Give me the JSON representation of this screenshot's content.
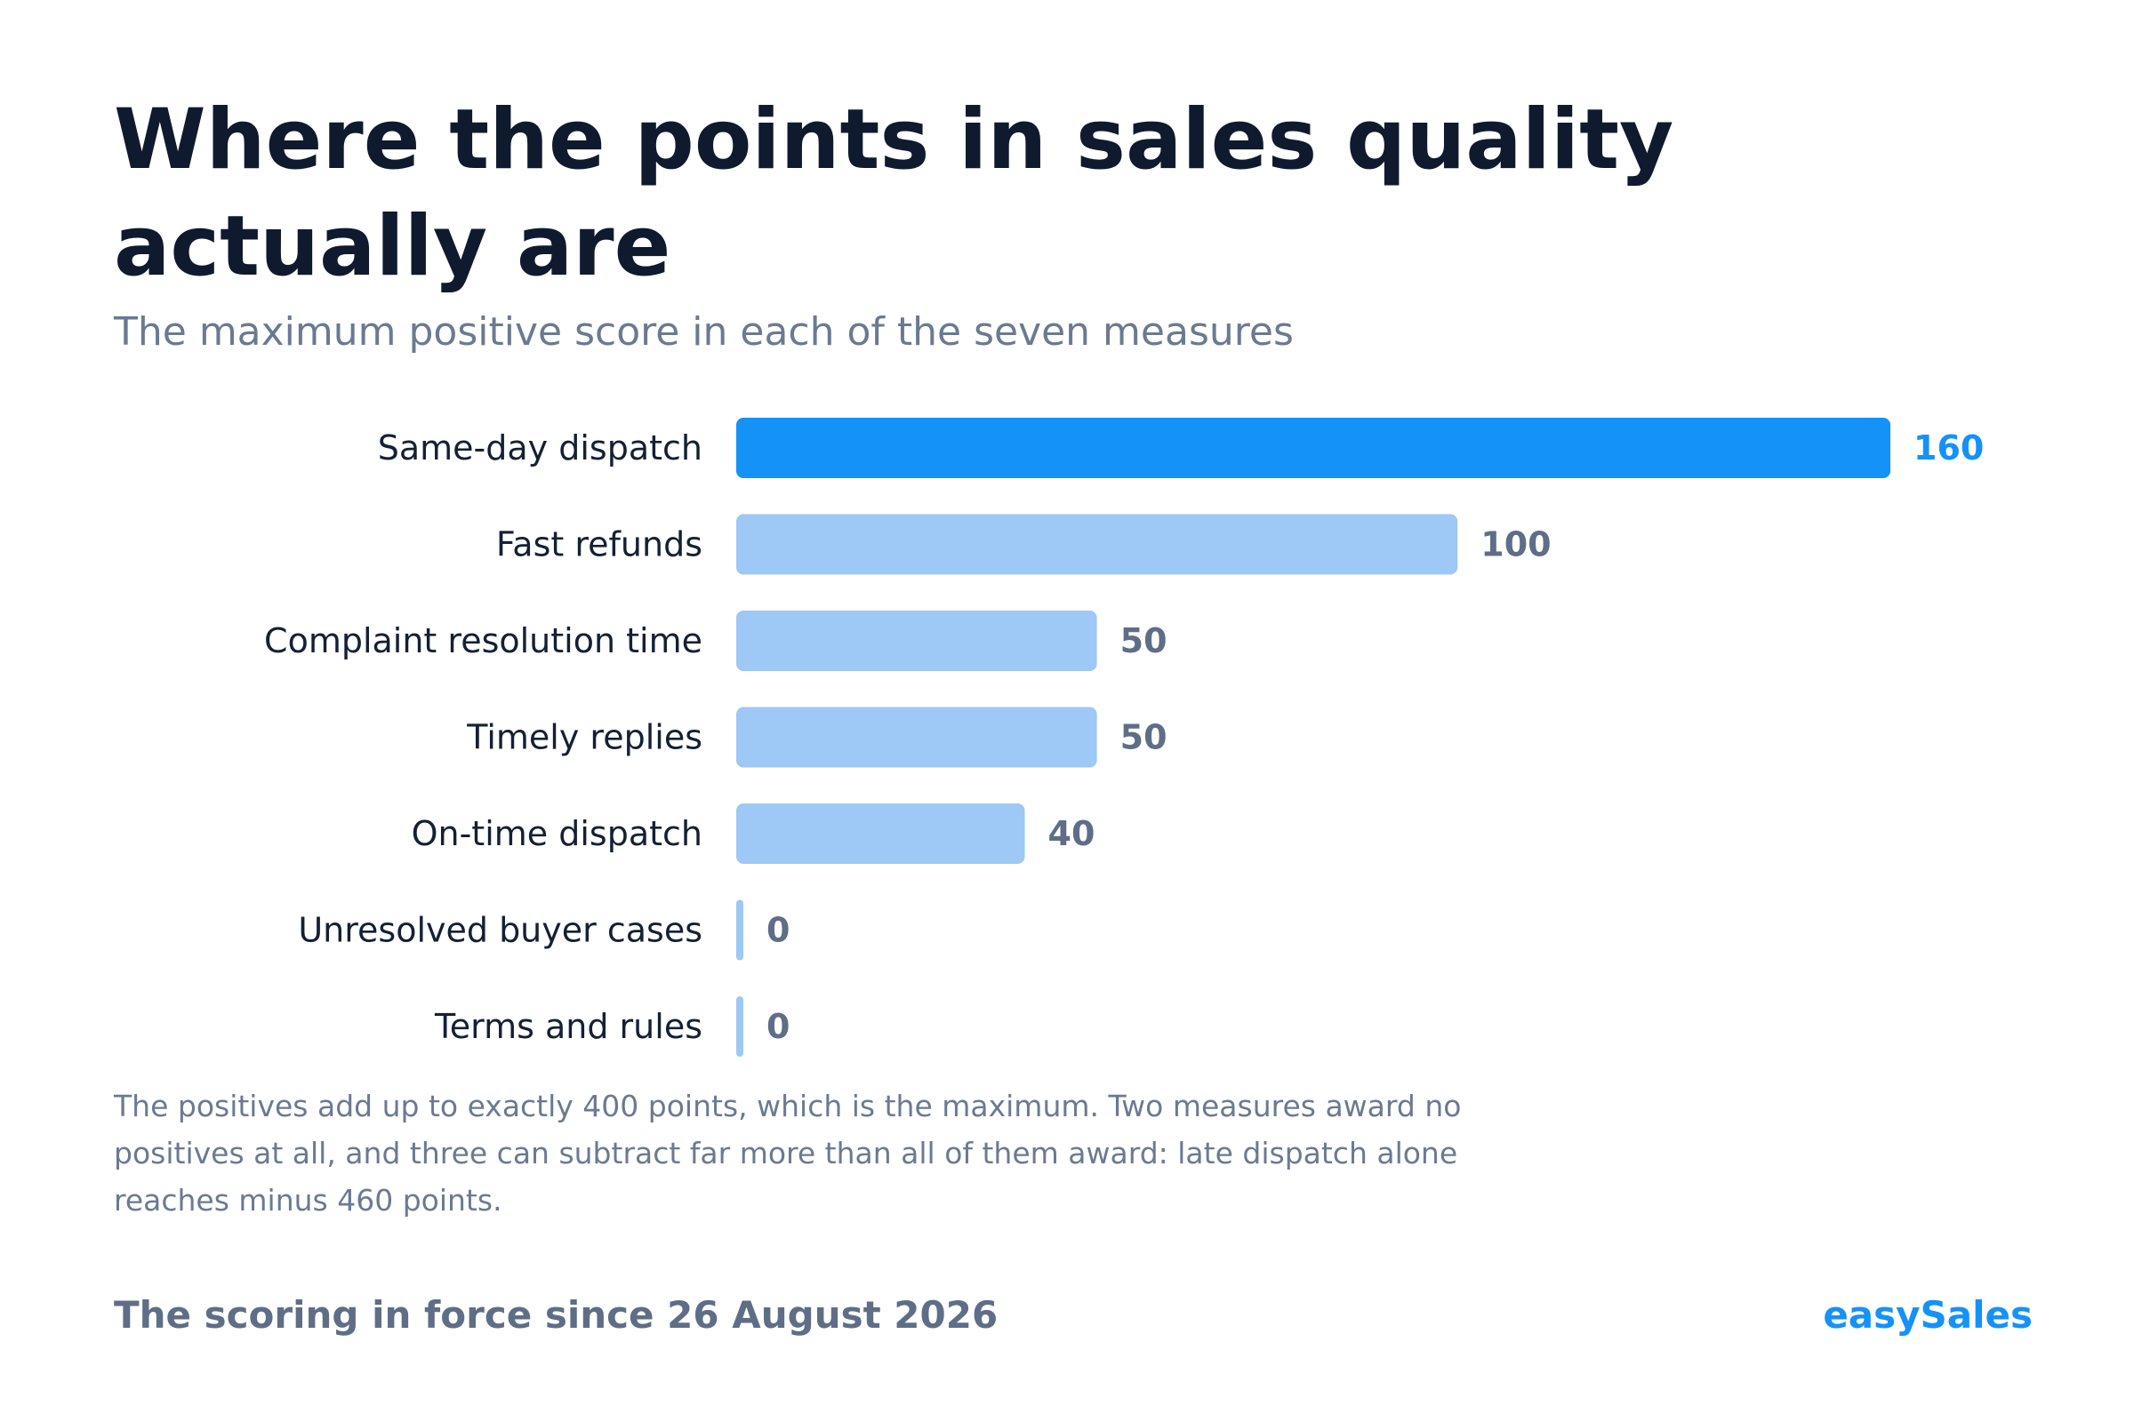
{
  "header": {
    "title": "Where the points in sales quality actually are",
    "subtitle": "The maximum positive score in each of the seven measures"
  },
  "chart_data": {
    "type": "bar",
    "orientation": "horizontal",
    "categories": [
      "Same-day dispatch",
      "Fast refunds",
      "Complaint resolution time",
      "Timely replies",
      "On-time dispatch",
      "Unresolved buyer cases",
      "Terms and rules"
    ],
    "values": [
      160,
      100,
      50,
      50,
      40,
      0,
      0
    ],
    "highlight_index": 0,
    "xlim": [
      0,
      160
    ],
    "grid": false,
    "colors": {
      "highlight": "#1592f7",
      "default": "#9ec8f5",
      "highlight_label": "#1592f7",
      "default_label": "#5f6e86"
    }
  },
  "note": "The positives add up to exactly 400 points, which is the maximum. Two measures award no positives at all, and three can subtract far more than all of them award: late dispatch alone reaches minus 460 points.",
  "footer": {
    "source": "The scoring in force since 26 August 2026",
    "brand": "easySales"
  }
}
